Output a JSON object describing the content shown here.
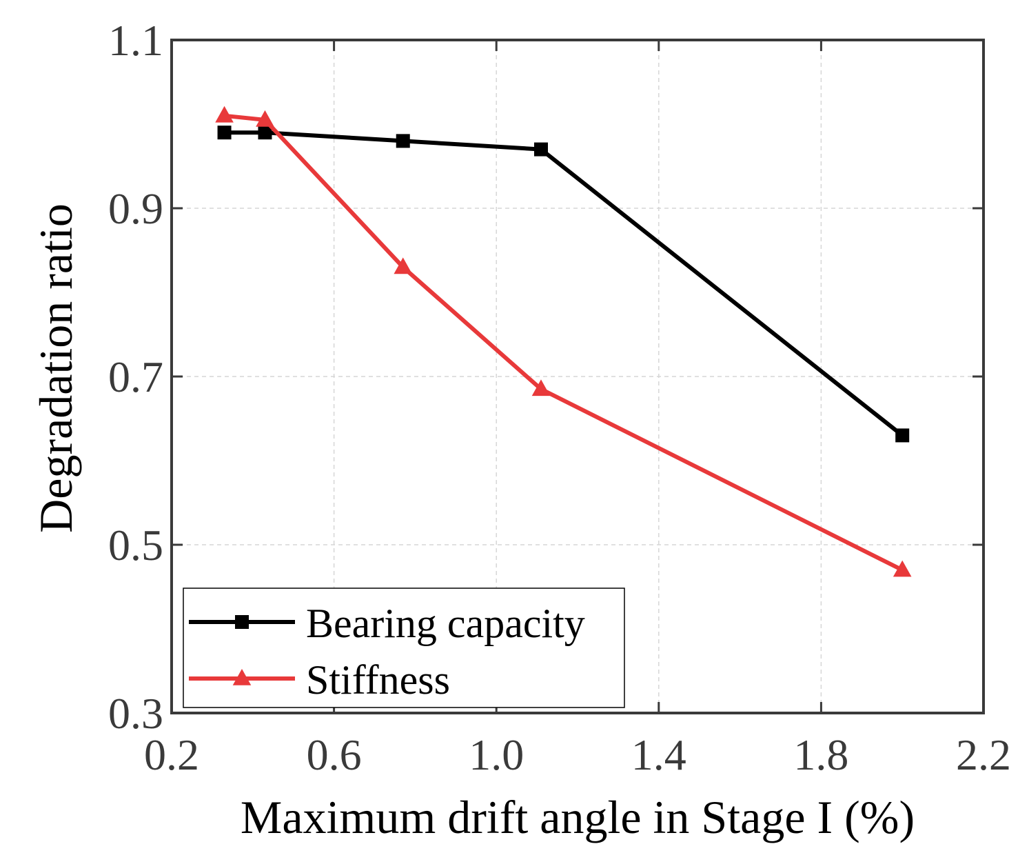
{
  "chart_data": {
    "type": "line",
    "title": "",
    "xlabel": "Maximum drift angle in Stage I (%)",
    "ylabel": "Degradation ratio",
    "xlim": [
      0.2,
      2.2
    ],
    "ylim": [
      0.3,
      1.1
    ],
    "xticks": [
      0.2,
      0.6,
      1.0,
      1.4,
      1.8,
      2.2
    ],
    "yticks": [
      0.3,
      0.5,
      0.7,
      0.9,
      1.1
    ],
    "xtick_labels": [
      "0.2",
      "0.6",
      "1.0",
      "1.4",
      "1.8",
      "2.2"
    ],
    "ytick_labels": [
      "0.3",
      "0.5",
      "0.7",
      "0.9",
      "1.1"
    ],
    "grid": true,
    "legend_position": "bottom-left",
    "series": [
      {
        "name": "Bearing capacity",
        "marker": "square",
        "color": "#000000",
        "x": [
          0.33,
          0.43,
          0.77,
          1.11,
          2.0
        ],
        "y": [
          0.99,
          0.99,
          0.98,
          0.97,
          0.63
        ]
      },
      {
        "name": "Stiffness",
        "marker": "triangle",
        "color": "#e8393a",
        "x": [
          0.33,
          0.43,
          0.77,
          1.11,
          2.0
        ],
        "y": [
          1.01,
          1.005,
          0.83,
          0.685,
          0.47
        ]
      }
    ]
  }
}
